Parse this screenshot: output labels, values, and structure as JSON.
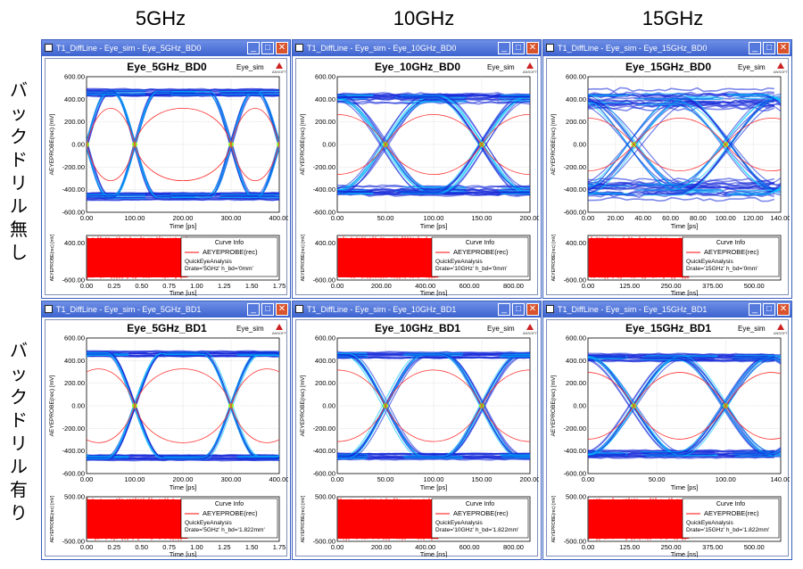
{
  "column_headers": [
    "5GHz",
    "10GHz",
    "15GHz"
  ],
  "row_labels": [
    "バックドリル無し",
    "バックドリル有り"
  ],
  "colors": {
    "eye_dark": "#1428d8",
    "eye_mid": "#00c8ff",
    "eye_hot": "#9aff00",
    "mask": "#ff3030",
    "waveform": "#ff0000",
    "title_bar": "#3c63cf"
  },
  "chart_data": [
    {
      "type": "heatmap",
      "window_title": "T1_DiffLine - Eye_sim - Eye_5GHz_BD0",
      "title": "Eye_5GHz_BD0",
      "sim_label": "Eye_sim",
      "logo": "ANSOFT",
      "ui_ps": 200,
      "eye_starts": [
        0,
        100,
        300,
        400
      ],
      "swing": 460,
      "noise": 40,
      "jitter": 3,
      "tr_frac": 0.22,
      "eye": {
        "xlabel": "Time [ps]",
        "ylabel": "AEYEPROBE(rec) [mV]",
        "xlim": [
          0,
          400
        ],
        "ylim": [
          -600,
          600
        ],
        "xticks": [
          "0.00",
          "100.00",
          "200.00",
          "300.00",
          "400.00"
        ],
        "yticks": [
          "600.00",
          "400.00",
          "200.00",
          "0.00",
          "-200.00",
          "-400.00",
          "-600.00"
        ]
      },
      "wave": {
        "xlabel": "Time [us]",
        "ylabel": "AEYEPROBE(rec) [mV]",
        "xlim": [
          0,
          1.75
        ],
        "ylim": [
          -600,
          600
        ],
        "xticks": [
          "0.00",
          "0.25",
          "0.50",
          "0.75",
          "1.00",
          "1.25",
          "1.50",
          "1.75"
        ],
        "yticks": [
          "400.00",
          "-600.00"
        ],
        "legend": {
          "title": "Curve Info",
          "series": "AEYEPROBE(rec)",
          "lines": [
            "QuickEyeAnalysis",
            "Drate='5GHz' h_bd='0mm'"
          ]
        }
      }
    },
    {
      "type": "heatmap",
      "window_title": "T1_DiffLine - Eye_sim - Eye_10GHz_BD0",
      "title": "Eye_10GHz_BD0",
      "sim_label": "Eye_sim",
      "logo": "ANSOFT",
      "ui_ps": 100,
      "eye_starts": [
        -50,
        50,
        150,
        250
      ],
      "swing": 410,
      "noise": 70,
      "jitter": 5,
      "tr_frac": 0.45,
      "eye": {
        "xlabel": "Time [ps]",
        "ylabel": "AEYEPROBE(rec) [mV]",
        "xlim": [
          0,
          200
        ],
        "ylim": [
          -600,
          600
        ],
        "xticks": [
          "0.00",
          "50.00",
          "100.00",
          "150.00",
          "200.00"
        ],
        "yticks": [
          "600.00",
          "400.00",
          "200.00",
          "0.00",
          "-200.00",
          "-400.00",
          "-600.00"
        ]
      },
      "wave": {
        "xlabel": "Time [ns]",
        "ylabel": "AEYEPROBE(rec) [mV]",
        "xlim": [
          0,
          875
        ],
        "ylim": [
          -600,
          600
        ],
        "xticks": [
          "0.00",
          "200.00",
          "400.00",
          "600.00",
          "800.00"
        ],
        "yticks": [
          "400.00",
          "-600.00"
        ],
        "legend": {
          "title": "Curve Info",
          "series": "AEYEPROBE(rec)",
          "lines": [
            "QuickEyeAnalysis",
            "Drate='10GHz' h_bd='0mm'"
          ]
        }
      }
    },
    {
      "type": "heatmap",
      "window_title": "T1_DiffLine - Eye_sim - Eye_15GHz_BD0",
      "title": "Eye_15GHz_BD0",
      "sim_label": "Eye_sim",
      "logo": "ANSOFT",
      "ui_ps": 66.7,
      "eye_starts": [
        -33.3,
        33.3,
        100,
        166.7
      ],
      "swing": 400,
      "noise": 110,
      "jitter": 6,
      "tr_frac": 0.55,
      "eye": {
        "xlabel": "Time [ps]",
        "ylabel": "AEYEPROBE(rec) [mV]",
        "xlim": [
          0,
          140
        ],
        "ylim": [
          -600,
          600
        ],
        "xticks": [
          "0.00",
          "20.00",
          "40.00",
          "60.00",
          "80.00",
          "100.00",
          "120.00",
          "140.00"
        ],
        "yticks": [
          "600.00",
          "400.00",
          "200.00",
          "0.00",
          "-200.00",
          "-400.00",
          "-600.00"
        ]
      },
      "wave": {
        "xlabel": "Time [ns]",
        "ylabel": "AEYEPROBE(rec) [mV]",
        "xlim": [
          0,
          580
        ],
        "ylim": [
          -600,
          600
        ],
        "xticks": [
          "0.00",
          "125.00",
          "250.00",
          "375.00",
          "500.00"
        ],
        "yticks": [
          "400.00",
          "-600.00"
        ],
        "legend": {
          "title": "Curve Info",
          "series": "AEYEPROBE(rec)",
          "lines": [
            "QuickEyeAnalysis",
            "Drate='15GHz' h_bd='0mm'"
          ]
        }
      }
    },
    {
      "type": "heatmap",
      "window_title": "T1_DiffLine - Eye_sim - Eye_5GHz_BD1",
      "title": "Eye_5GHz_BD1",
      "sim_label": "Eye_sim",
      "logo": "ANSOFT",
      "ui_ps": 200,
      "eye_starts": [
        -50,
        100,
        300,
        450
      ],
      "swing": 460,
      "noise": 30,
      "jitter": 3,
      "tr_frac": 0.28,
      "eye": {
        "xlabel": "Time [ps]",
        "ylabel": "AEYEPROBE(rec) [mV]",
        "xlim": [
          0,
          400
        ],
        "ylim": [
          -600,
          600
        ],
        "xticks": [
          "0.00",
          "100.00",
          "200.00",
          "300.00",
          "400.00"
        ],
        "yticks": [
          "600.00",
          "400.00",
          "200.00",
          "0.00",
          "-200.00",
          "-400.00",
          "-600.00"
        ]
      },
      "wave": {
        "xlabel": "Time [us]",
        "ylabel": "AEYEPROBE(rec) [mV]",
        "xlim": [
          0,
          1.75
        ],
        "ylim": [
          -500,
          500
        ],
        "xticks": [
          "0.00",
          "0.25",
          "0.50",
          "0.75",
          "1.00",
          "1.25",
          "1.50",
          "1.75"
        ],
        "yticks": [
          "500.00",
          "-500.00"
        ],
        "legend": {
          "title": "Curve Info",
          "series": "AEYEPROBE(rec)",
          "lines": [
            "QuickEyeAnalysis",
            "Drate='5GHz' h_bd='1.822mm'"
          ]
        }
      }
    },
    {
      "type": "heatmap",
      "window_title": "T1_DiffLine - Eye_sim - Eye_10GHz_BD1",
      "title": "Eye_10GHz_BD1",
      "sim_label": "Eye_sim",
      "logo": "ANSOFT",
      "ui_ps": 100,
      "eye_starts": [
        -50,
        50,
        150,
        250
      ],
      "swing": 450,
      "noise": 35,
      "jitter": 3,
      "tr_frac": 0.4,
      "eye": {
        "xlabel": "Time [ps]",
        "ylabel": "AEYEPROBE(rec) [mV]",
        "xlim": [
          0,
          200
        ],
        "ylim": [
          -600,
          600
        ],
        "xticks": [
          "0.00",
          "50.00",
          "100.00",
          "150.00",
          "200.00"
        ],
        "yticks": [
          "600.00",
          "400.00",
          "200.00",
          "0.00",
          "-200.00",
          "-400.00",
          "-600.00"
        ]
      },
      "wave": {
        "xlabel": "Time [ns]",
        "ylabel": "AEYEPROBE(rec) [mV]",
        "xlim": [
          0,
          875
        ],
        "ylim": [
          -500,
          500
        ],
        "xticks": [
          "0.00",
          "200.00",
          "400.00",
          "600.00",
          "800.00"
        ],
        "yticks": [
          "500.00",
          "-500.00"
        ],
        "legend": {
          "title": "Curve Info",
          "series": "AEYEPROBE(rec)",
          "lines": [
            "QuickEyeAnalysis",
            "Drate='10GHz' h_bd='1.822mm'"
          ]
        }
      }
    },
    {
      "type": "heatmap",
      "window_title": "T1_DiffLine - Eye_sim - Eye_15GHz_BD1",
      "title": "Eye_15GHz_BD1",
      "sim_label": "Eye_sim",
      "logo": "ANSOFT",
      "ui_ps": 66.7,
      "eye_starts": [
        -33.3,
        33.3,
        100,
        166.7
      ],
      "swing": 430,
      "noise": 45,
      "jitter": 3,
      "tr_frac": 0.5,
      "eye": {
        "xlabel": "Time [ps]",
        "ylabel": "AEYEPROBE(rec) [mV]",
        "xlim": [
          0,
          140
        ],
        "ylim": [
          -600,
          600
        ],
        "xticks": [
          "0.00",
          "50.00",
          "100.00",
          "140.00"
        ],
        "yticks": [
          "600.00",
          "400.00",
          "200.00",
          "0.00",
          "-200.00",
          "-400.00",
          "-600.00"
        ]
      },
      "wave": {
        "xlabel": "Time [ns]",
        "ylabel": "AEYEPROBE(rec) [mV]",
        "xlim": [
          0,
          580
        ],
        "ylim": [
          -500,
          500
        ],
        "xticks": [
          "0.00",
          "125.00",
          "250.00",
          "375.00",
          "500.00"
        ],
        "yticks": [
          "500.00",
          "-500.00"
        ],
        "legend": {
          "title": "Curve Info",
          "series": "AEYEPROBE(rec)",
          "lines": [
            "QuickEyeAnalysis",
            "Drate='15GHz' h_bd='1.822mm'"
          ]
        }
      }
    }
  ]
}
